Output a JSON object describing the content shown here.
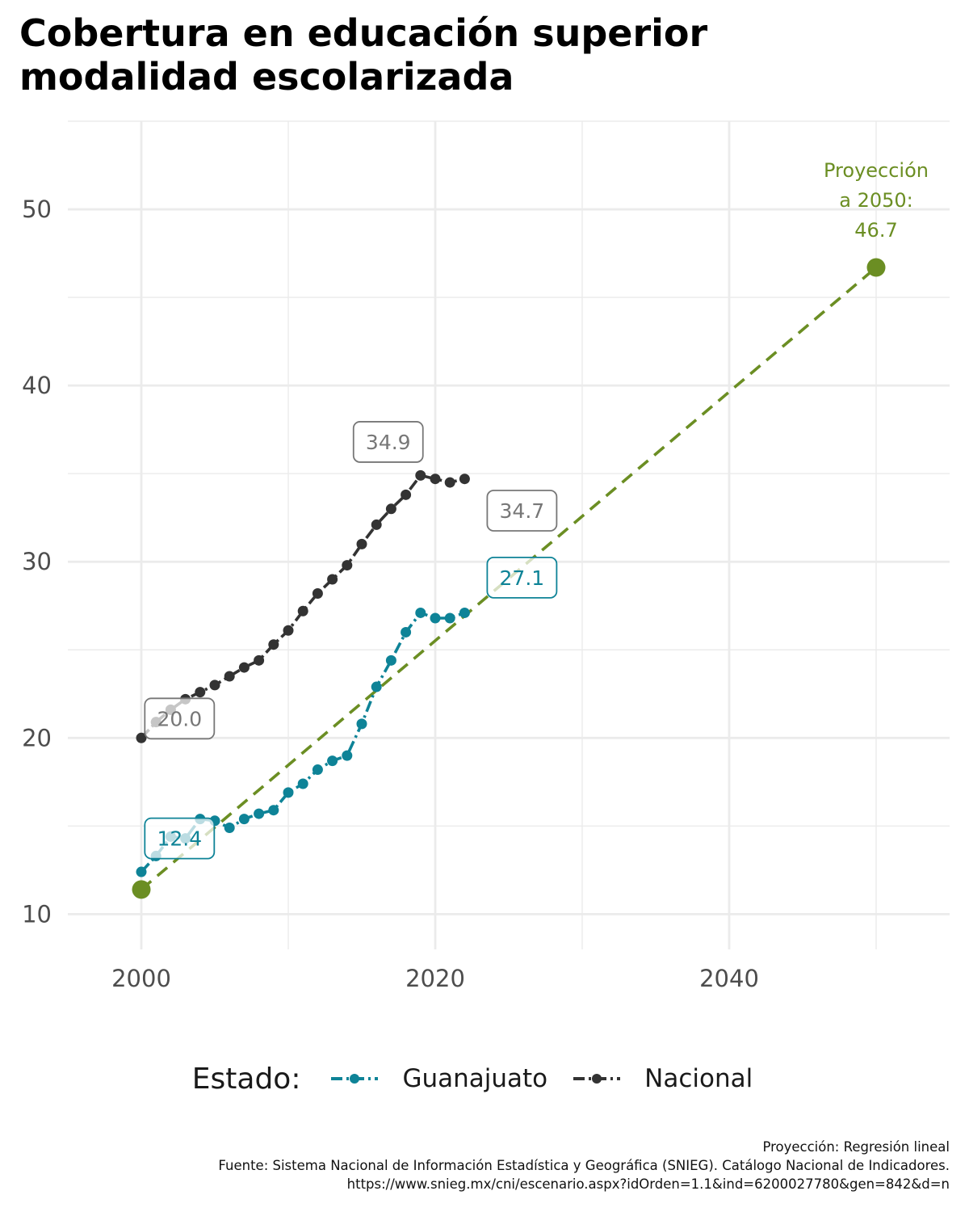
{
  "title_lines": [
    "Cobertura en educación superior",
    "modalidad escolarizada"
  ],
  "colors": {
    "guanajuato": "#0e8397",
    "nacional": "#333333",
    "projection": "#6b8e23",
    "grid": "#ebebeb",
    "tick_text": "#4d4d4d",
    "label_gray": "#777777"
  },
  "chart_data": {
    "type": "line",
    "title": "Cobertura en educación superior modalidad escolarizada",
    "xlabel": "",
    "ylabel": "",
    "xlim": [
      1995,
      2055
    ],
    "ylim": [
      8,
      55
    ],
    "x_ticks": [
      2000,
      2020,
      2040
    ],
    "y_ticks": [
      10,
      20,
      30,
      40,
      50
    ],
    "grid": true,
    "legend_position": "bottom",
    "legend_title": "Estado:",
    "series": [
      {
        "name": "Guanajuato",
        "color": "#0e8397",
        "x": [
          2000,
          2001,
          2002,
          2003,
          2004,
          2005,
          2006,
          2007,
          2008,
          2009,
          2010,
          2011,
          2012,
          2013,
          2014,
          2015,
          2016,
          2017,
          2018,
          2019,
          2020,
          2021,
          2022
        ],
        "y": [
          12.4,
          13.3,
          14.4,
          14.3,
          15.4,
          15.3,
          14.9,
          15.4,
          15.7,
          15.9,
          16.9,
          17.4,
          18.2,
          18.7,
          19.0,
          20.8,
          22.9,
          24.4,
          26.0,
          27.1,
          26.8,
          26.8,
          27.1
        ]
      },
      {
        "name": "Nacional",
        "color": "#333333",
        "x": [
          2000,
          2001,
          2002,
          2003,
          2004,
          2005,
          2006,
          2007,
          2008,
          2009,
          2010,
          2011,
          2012,
          2013,
          2014,
          2015,
          2016,
          2017,
          2018,
          2019,
          2020,
          2021,
          2022
        ],
        "y": [
          20.0,
          20.9,
          21.6,
          22.2,
          22.6,
          23.0,
          23.5,
          24.0,
          24.4,
          25.3,
          26.1,
          27.2,
          28.2,
          29.0,
          29.8,
          31.0,
          32.1,
          33.0,
          33.8,
          34.9,
          34.7,
          34.5,
          34.7
        ]
      }
    ],
    "projection": {
      "x": [
        2000,
        2050
      ],
      "y": [
        11.4,
        46.7
      ],
      "color": "#6b8e23",
      "label_lines": [
        "Proyección",
        "a 2050:",
        "46.7"
      ]
    },
    "value_labels": [
      {
        "series": "Nacional",
        "text": "20.0",
        "x": 2002.6,
        "y": 21.1
      },
      {
        "series": "Nacional",
        "text": "34.9",
        "x": 2016.8,
        "y": 36.8
      },
      {
        "series": "Nacional",
        "text": "34.7",
        "x": 2025.9,
        "y": 32.9
      },
      {
        "series": "Guanajuato",
        "text": "12.4",
        "x": 2002.6,
        "y": 14.3
      },
      {
        "series": "Guanajuato",
        "text": "27.1",
        "x": 2025.9,
        "y": 29.1
      }
    ]
  },
  "legend": {
    "title": "Estado:",
    "items": [
      {
        "label": "Guanajuato",
        "color": "#0e8397"
      },
      {
        "label": "Nacional",
        "color": "#333333"
      }
    ]
  },
  "caption": {
    "line1": "Proyección: Regresión lineal",
    "line2": "Fuente: Sistema Nacional de Información Estadística y Geográfica (SNIEG). Catálogo Nacional de Indicadores.",
    "line3": "https://www.snieg.mx/cni/escenario.aspx?idOrden=1.1&ind=6200027780&gen=842&d=n"
  }
}
